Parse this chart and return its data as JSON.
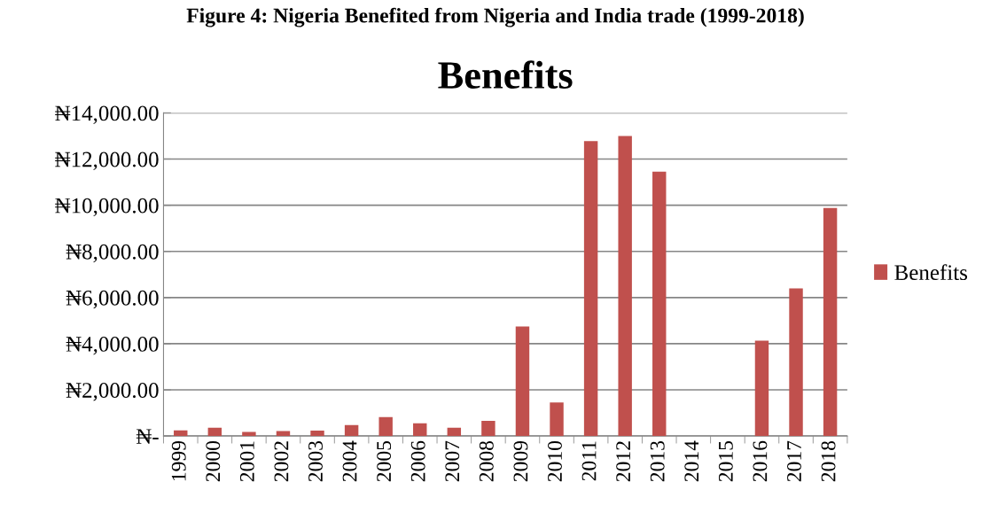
{
  "chart_data": {
    "type": "bar",
    "title": "Benefits",
    "annotations": [
      "Figure 4: Nigeria Benefited from Nigeria and India trade (1999-2018)"
    ],
    "categories": [
      "1999",
      "2000",
      "2001",
      "2002",
      "2003",
      "2004",
      "2005",
      "2006",
      "2007",
      "2008",
      "2009",
      "2010",
      "2011",
      "2012",
      "2013",
      "2014",
      "2015",
      "2016",
      "2017",
      "2018"
    ],
    "series": [
      {
        "name": "Benefits",
        "color": "#c0504d",
        "values": [
          250,
          365,
          175,
          215,
          240,
          480,
          820,
          555,
          365,
          655,
          4750,
          1450,
          12780,
          13000,
          11450,
          0,
          0,
          4130,
          6400,
          9880
        ]
      }
    ],
    "ylim": [
      0,
      14000
    ],
    "yticks": [
      {
        "value": 0,
        "label": "₦-"
      },
      {
        "value": 2000,
        "label": "₦2,000.00"
      },
      {
        "value": 4000,
        "label": "₦4,000.00"
      },
      {
        "value": 6000,
        "label": "₦6,000.00"
      },
      {
        "value": 8000,
        "label": "₦8,000.00"
      },
      {
        "value": 10000,
        "label": "₦10,000.00"
      },
      {
        "value": 12000,
        "label": "₦12,000.00"
      },
      {
        "value": 14000,
        "label": "₦14,000.00"
      }
    ],
    "grid": "y",
    "legend": "right"
  }
}
